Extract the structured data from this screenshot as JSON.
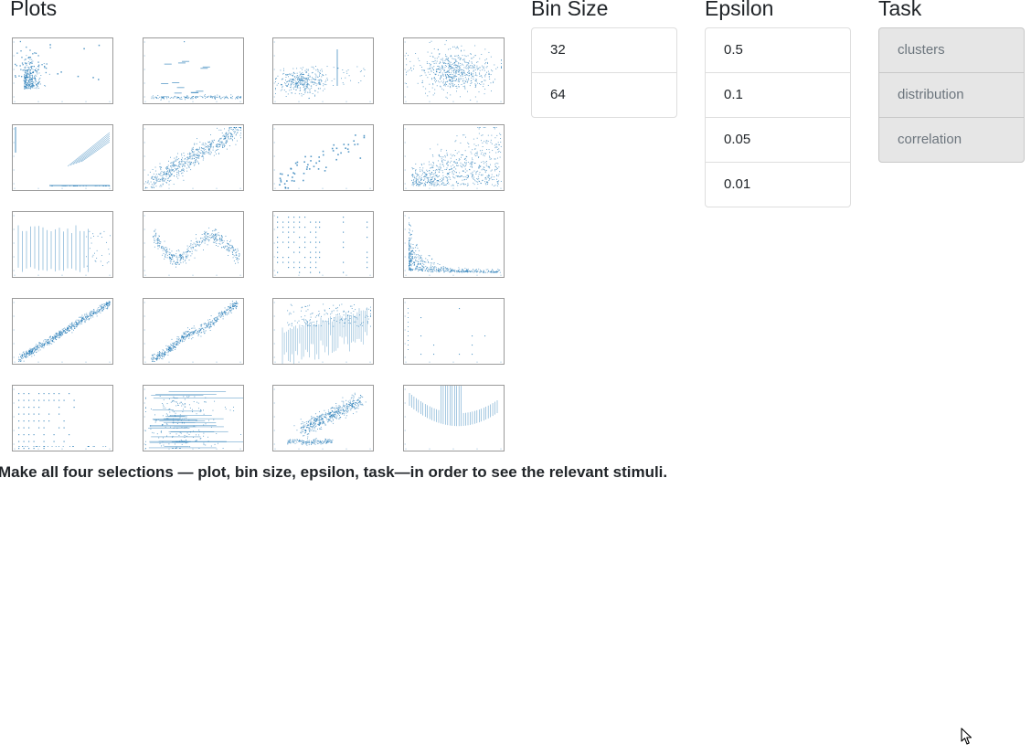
{
  "plots": {
    "title": "Plots",
    "thumbnails": [
      "pattern-cluster-blobs",
      "pattern-horizontal-bands",
      "pattern-blob-with-spike",
      "pattern-gaussian-cloud",
      "pattern-diagonal-lines",
      "pattern-linear-cloud",
      "pattern-sparse-scatter",
      "pattern-wedge-cloud",
      "pattern-vertical-stripes",
      "pattern-wavy-band",
      "pattern-grid-dots",
      "pattern-decay-curve",
      "pattern-thin-diagonal",
      "pattern-curved-diagonal",
      "pattern-rising-stripes",
      "pattern-sparse-grid",
      "pattern-dotted-grid",
      "pattern-horizontal-streaks",
      "pattern-two-clusters",
      "pattern-u-shape"
    ],
    "mark_color": "#1f77b4"
  },
  "bin_size": {
    "title": "Bin Size",
    "options": [
      "32",
      "64"
    ]
  },
  "epsilon": {
    "title": "Epsilon",
    "options": [
      "0.5",
      "0.1",
      "0.05",
      "0.01"
    ]
  },
  "task": {
    "title": "Task",
    "options": [
      "clusters",
      "distribution",
      "correlation"
    ]
  },
  "instructions": "Make all four selections — plot, bin size, epsilon, task—in order to see the relevant stimuli.",
  "cursor": "mouse-pointer-icon"
}
